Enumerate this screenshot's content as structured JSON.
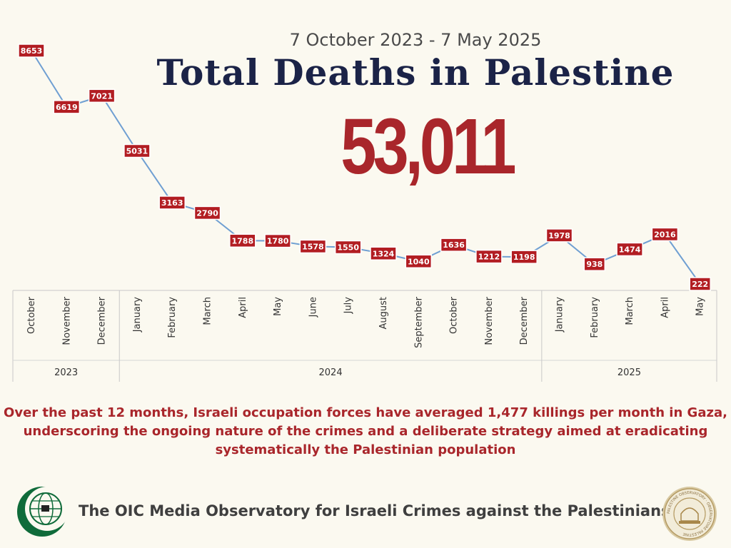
{
  "header": {
    "subtitle": "7 October 2023 - 7 May 2025",
    "title": "Total Deaths in Palestine",
    "total": "53,011"
  },
  "chart_data": {
    "type": "line",
    "x": [
      "October",
      "November",
      "December",
      "January",
      "February",
      "March",
      "April",
      "May",
      "June",
      "July",
      "August",
      "September",
      "October",
      "November",
      "December",
      "January",
      "February",
      "March",
      "April",
      "May"
    ],
    "years": [
      {
        "label": "2023",
        "months": 3
      },
      {
        "label": "2024",
        "months": 12
      },
      {
        "label": "2025",
        "months": 5
      }
    ],
    "series": [
      {
        "values": [
          8653,
          6619,
          7021,
          5031,
          3163,
          2790,
          1788,
          1780,
          1578,
          1550,
          1324,
          1040,
          1636,
          1212,
          1198,
          1978,
          938,
          1474,
          2016,
          222
        ]
      }
    ],
    "ylim": [
      0,
      9000
    ],
    "grid": false,
    "data_labels": true,
    "colors": {
      "line": "#6f9fd2",
      "label_bg": "#b21d22",
      "label_border": "#ffffff"
    }
  },
  "note": {
    "lines": [
      "Over the past 12 months, Israeli occupation forces have averaged 1,477 killings per month in Gaza,",
      "underscoring the ongoing nature of the crimes and a deliberate strategy aimed at eradicating",
      "systematically the Palestinian population"
    ]
  },
  "footer": {
    "text": "The OIC Media Observatory for Israeli Crimes against the Palestinians",
    "left_logo_icon": "oic-crescent-globe-logo",
    "right_logo_icon": "palestine-observatory-seal-logo",
    "right_logo_text": "PALESTINE OBSERVATORY · OBSERVATOIRE PALESTINE"
  }
}
